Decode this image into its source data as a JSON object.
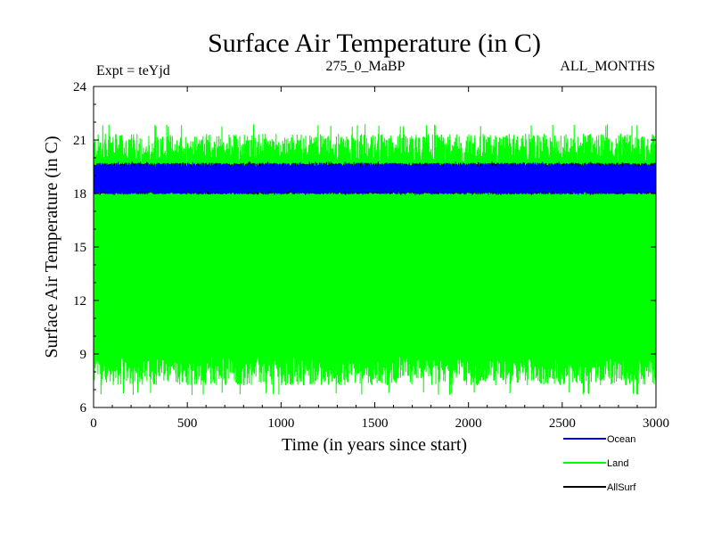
{
  "colors": {
    "ocean": "#0000ff",
    "land": "#00ff00",
    "allsurf": "#000000",
    "axis": "#000000",
    "background": "#ffffff"
  },
  "header": {
    "expt_label": "Expt = teYjd",
    "run_label": "275_0_MaBP",
    "months_label": "ALL_MONTHS"
  },
  "chart_data": {
    "type": "line",
    "title": "Surface Air Temperature (in C)",
    "xlabel": "Time (in years since start)",
    "ylabel": "Surface Air Temperature (in C)",
    "xlim": [
      0,
      3000
    ],
    "ylim": [
      6,
      24
    ],
    "xticks": [
      0,
      500,
      1000,
      1500,
      2000,
      2500,
      3000
    ],
    "yticks": [
      6,
      9,
      12,
      15,
      18,
      21,
      24
    ],
    "grid": false,
    "legend_position": "bottom-right",
    "series": [
      {
        "name": "Ocean",
        "color": "#0000ff",
        "mean": 18.7,
        "min": 17.9,
        "max": 19.8
      },
      {
        "name": "Land",
        "color": "#00ff00",
        "mean": 14.3,
        "min": 6.7,
        "max": 21.9
      },
      {
        "name": "AllSurf",
        "color": "#000000",
        "mean": 18.7,
        "min": 17.9,
        "max": 19.8
      }
    ]
  }
}
